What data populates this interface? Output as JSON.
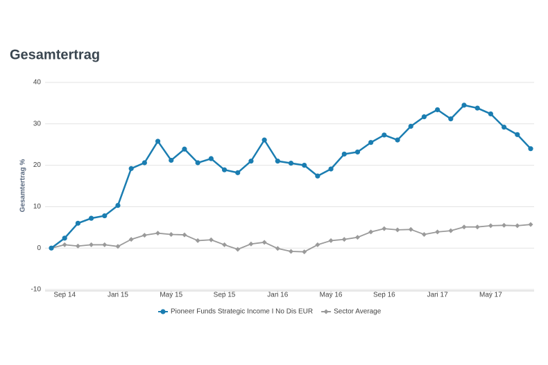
{
  "chart_data": {
    "type": "line",
    "title": "Gesamtertrag",
    "y_label": "Gesamtertrag %",
    "categories": [
      null,
      "Sep 14",
      null,
      null,
      null,
      "Jan 15",
      null,
      null,
      null,
      "May 15",
      null,
      null,
      null,
      "Sep 15",
      null,
      null,
      null,
      "Jan 16",
      null,
      null,
      null,
      "May 16",
      null,
      null,
      null,
      "Sep 16",
      null,
      null,
      null,
      "Jan 17",
      null,
      null,
      null,
      "May 17",
      null,
      null,
      null
    ],
    "series": [
      {
        "name": "Pioneer Funds Strategic Income I No Dis EUR",
        "color": "#1a7db1",
        "marker": "circle",
        "values": [
          0,
          2.4,
          6,
          7.2,
          7.8,
          10.3,
          19.2,
          20.6,
          25.8,
          21.2,
          23.9,
          20.6,
          21.6,
          18.9,
          18.2,
          21,
          26.1,
          21,
          20.5,
          20,
          17.4,
          19.1,
          22.7,
          23.2,
          25.5,
          27.3,
          26.1,
          29.4,
          31.7,
          33.4,
          31.2,
          34.5,
          33.8,
          32.4,
          29.2,
          27.4,
          24
        ]
      },
      {
        "name": "Sector Average",
        "color": "#9a9a9a",
        "marker": "diamond",
        "values": [
          0,
          0.8,
          0.5,
          0.8,
          0.8,
          0.4,
          2.1,
          3.1,
          3.6,
          3.3,
          3.2,
          1.8,
          2.0,
          0.8,
          -0.3,
          1.0,
          1.4,
          -0.1,
          -0.8,
          -0.9,
          0.8,
          1.8,
          2.1,
          2.6,
          3.9,
          4.7,
          4.4,
          4.5,
          3.3,
          3.9,
          4.2,
          5.1,
          5.1,
          5.4,
          5.5,
          5.4,
          5.7
        ]
      }
    ],
    "ylim": [
      -10,
      40
    ],
    "yticks": [
      -10,
      0,
      10,
      20,
      30,
      40
    ],
    "grid": true,
    "legend": "bottom"
  }
}
